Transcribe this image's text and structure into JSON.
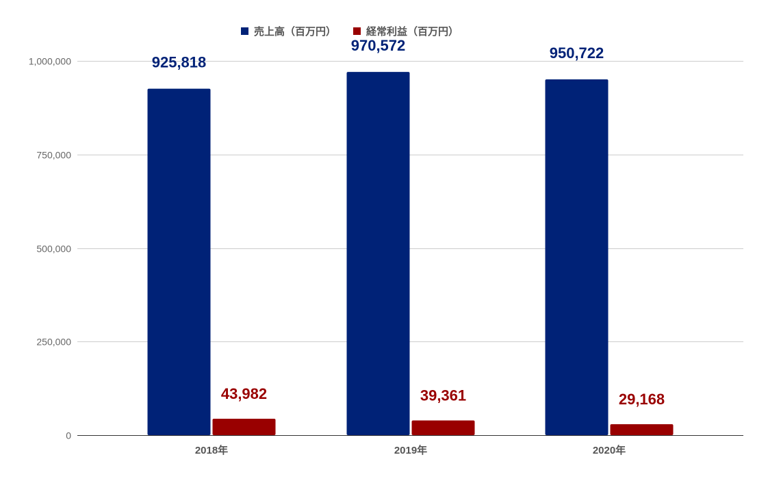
{
  "chart_data": {
    "type": "bar",
    "categories": [
      "2018年",
      "2019年",
      "2020年"
    ],
    "series": [
      {
        "name": "売上高（百万円）",
        "values": [
          925818,
          970572,
          950722
        ],
        "color": "#002277",
        "labels": [
          "925,818",
          "970,572",
          "950,722"
        ]
      },
      {
        "name": "経常利益（百万円）",
        "values": [
          43982,
          39361,
          29168
        ],
        "color": "#990000",
        "labels": [
          "43,982",
          "39,361",
          "29,168"
        ]
      }
    ],
    "y_ticks": [
      0,
      250000,
      500000,
      750000,
      1000000
    ],
    "y_tick_labels": [
      "0",
      "250,000",
      "500,000",
      "750,000",
      "1,000,000"
    ],
    "ylim": [
      0,
      1000000
    ],
    "grid": true,
    "legend_position": "top-center",
    "title": "",
    "xlabel": "",
    "ylabel": ""
  }
}
